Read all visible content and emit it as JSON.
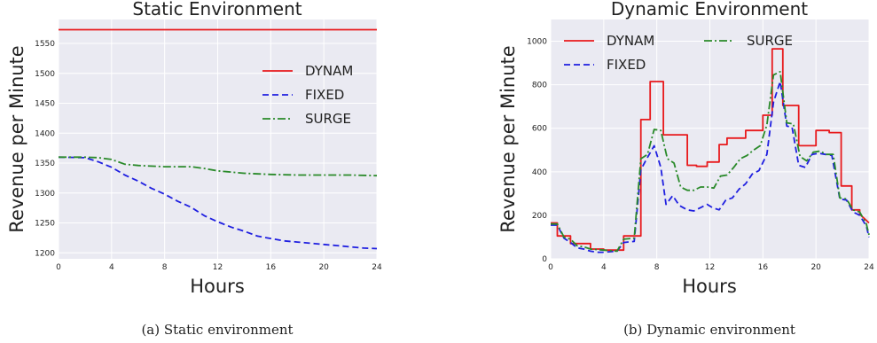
{
  "chart_data": [
    {
      "type": "line",
      "title": "Static Environment",
      "xlabel": "Hours",
      "ylabel": "Revenue per Minute",
      "xlim": [
        0,
        24
      ],
      "ylim": [
        1190,
        1590
      ],
      "xticks": [
        0,
        4,
        8,
        12,
        16,
        20,
        24
      ],
      "yticks": [
        1200,
        1250,
        1300,
        1350,
        1400,
        1450,
        1500,
        1550
      ],
      "grid": true,
      "legend_position": "right",
      "caption": "(a)  Static environment",
      "series": [
        {
          "name": "DYNAM",
          "color": "#e8191c",
          "dash": "solid",
          "x": [
            0,
            24
          ],
          "y": [
            1573,
            1573
          ]
        },
        {
          "name": "FIXED",
          "color": "#1f1fe0",
          "dash": "dashed",
          "x": [
            0,
            2,
            3,
            4,
            5,
            6,
            7,
            8,
            9,
            10,
            11,
            12,
            13,
            14,
            15,
            16,
            17,
            18,
            19,
            20,
            21,
            22,
            23,
            24
          ],
          "y": [
            1360,
            1359,
            1352,
            1343,
            1330,
            1320,
            1308,
            1298,
            1286,
            1276,
            1262,
            1252,
            1243,
            1236,
            1228,
            1224,
            1220,
            1218,
            1216,
            1214,
            1212,
            1210,
            1208,
            1207
          ]
        },
        {
          "name": "SURGE",
          "color": "#2a8a2a",
          "dash": "dashdot",
          "x": [
            0,
            2,
            3,
            4,
            5,
            6,
            8,
            10,
            11,
            12,
            14,
            16,
            18,
            20,
            22,
            24
          ],
          "y": [
            1360,
            1360,
            1359,
            1356,
            1348,
            1346,
            1344,
            1344,
            1341,
            1337,
            1333,
            1331,
            1330,
            1330,
            1330,
            1329
          ]
        }
      ]
    },
    {
      "type": "line",
      "title": "Dynamic Environment",
      "xlabel": "Hours",
      "ylabel": "Revenue per Minute",
      "xlim": [
        0,
        24
      ],
      "ylim": [
        0,
        1100
      ],
      "xticks": [
        0,
        4,
        8,
        12,
        16,
        20,
        24
      ],
      "yticks": [
        0,
        200,
        400,
        600,
        800,
        1000
      ],
      "grid": true,
      "legend_position": "top",
      "caption": "(b)  Dynamic environment",
      "series": [
        {
          "name": "DYNAM",
          "color": "#e8191c",
          "dash": "solid",
          "x": [
            0,
            0.5,
            0.5,
            1,
            1,
            1.5,
            1.5,
            2,
            2,
            3,
            3,
            4,
            4,
            5.5,
            5.5,
            6.3,
            6.3,
            6.8,
            6.8,
            7.5,
            7.5,
            8.5,
            8.5,
            9.3,
            9.3,
            10.3,
            10.3,
            11,
            11,
            11.8,
            11.8,
            12.7,
            12.7,
            13.3,
            13.3,
            14,
            14,
            14.7,
            14.7,
            15.3,
            15.3,
            16,
            16,
            16.7,
            16.7,
            17.5,
            17.5,
            18,
            18,
            18.7,
            18.7,
            19.3,
            19.3,
            20,
            20,
            21,
            21,
            21.9,
            21.9,
            22.7,
            22.7,
            23.3,
            23.3,
            24
          ],
          "y": [
            165,
            165,
            105,
            105,
            105,
            105,
            70,
            70,
            70,
            70,
            45,
            45,
            40,
            40,
            105,
            105,
            105,
            105,
            640,
            640,
            815,
            815,
            570,
            570,
            570,
            570,
            430,
            430,
            425,
            425,
            445,
            445,
            525,
            525,
            555,
            555,
            555,
            555,
            590,
            590,
            590,
            590,
            660,
            660,
            965,
            965,
            705,
            705,
            705,
            705,
            520,
            520,
            520,
            520,
            590,
            590,
            580,
            580,
            335,
            335,
            225,
            225,
            205,
            165
          ]
        },
        {
          "name": "FIXED",
          "color": "#1f1fe0",
          "dash": "dashed",
          "x": [
            0,
            0.5,
            1,
            1.5,
            2,
            2.5,
            3,
            3.5,
            4,
            5,
            5.5,
            6.3,
            6.8,
            7.2,
            7.8,
            8.3,
            8.7,
            9.2,
            9.7,
            10.3,
            10.8,
            11.3,
            11.8,
            12.2,
            12.7,
            13.2,
            13.7,
            14.2,
            14.7,
            15.2,
            15.7,
            16.3,
            16.8,
            17.3,
            17.8,
            18.2,
            18.7,
            19.2,
            19.7,
            20.2,
            20.7,
            21.2,
            21.8,
            22.3,
            22.8,
            23.3,
            23.8,
            24
          ],
          "y": [
            155,
            155,
            95,
            75,
            50,
            45,
            35,
            30,
            30,
            35,
            75,
            80,
            410,
            455,
            520,
            420,
            250,
            290,
            245,
            225,
            220,
            235,
            250,
            235,
            225,
            270,
            280,
            320,
            345,
            390,
            405,
            480,
            720,
            815,
            610,
            605,
            430,
            420,
            480,
            485,
            480,
            475,
            275,
            270,
            215,
            200,
            150,
            100
          ]
        },
        {
          "name": "SURGE",
          "color": "#2a8a2a",
          "dash": "dashdot",
          "x": [
            0,
            0.5,
            1,
            1.5,
            2,
            2.5,
            3,
            4,
            5,
            5.5,
            6.3,
            6.8,
            7.3,
            7.8,
            8.3,
            8.8,
            9.3,
            9.8,
            10.3,
            10.8,
            11.3,
            11.8,
            12.3,
            12.8,
            13.3,
            13.8,
            14.3,
            14.8,
            15.3,
            15.8,
            16.3,
            16.8,
            17.3,
            17.8,
            18.3,
            18.8,
            19.3,
            19.8,
            20.3,
            20.8,
            21.3,
            21.8,
            22.3,
            22.8,
            23.3,
            23.8,
            24
          ],
          "y": [
            160,
            160,
            100,
            90,
            60,
            55,
            45,
            40,
            35,
            90,
            95,
            460,
            480,
            595,
            590,
            460,
            440,
            330,
            315,
            315,
            330,
            330,
            325,
            380,
            385,
            420,
            460,
            475,
            500,
            520,
            615,
            845,
            860,
            625,
            620,
            470,
            450,
            490,
            495,
            480,
            480,
            280,
            275,
            225,
            215,
            160,
            110
          ]
        }
      ]
    }
  ]
}
